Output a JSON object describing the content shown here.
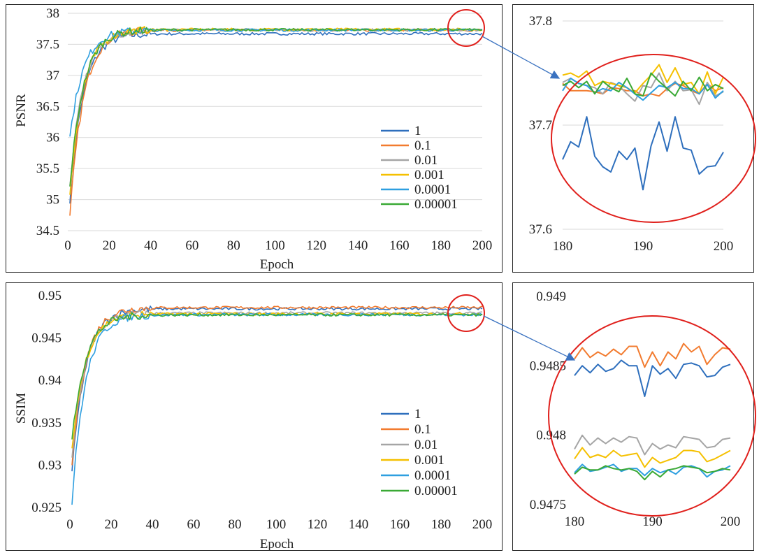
{
  "colors": {
    "1": "#2e6fbd",
    "0.1": "#f27b2f",
    "0.01": "#a5a5a5",
    "0.001": "#f5c000",
    "0.0001": "#2e9fe0",
    "0.00001": "#3aa935",
    "highlight": "#e0201c",
    "arrow": "#3a72c0"
  },
  "chart_data": [
    {
      "id": "psnr-main",
      "type": "line",
      "xlabel": "Epoch",
      "ylabel": "PSNR",
      "xlim": [
        0,
        200
      ],
      "ylim": [
        34.5,
        38
      ],
      "xticks": [
        "0",
        "20",
        "40",
        "60",
        "80",
        "100",
        "120",
        "140",
        "160",
        "180",
        "200"
      ],
      "yticks": [
        "34.5",
        "35",
        "35.5",
        "36",
        "36.5",
        "37",
        "37.5",
        "38"
      ],
      "legend_position": "center-right",
      "legend": [
        "1",
        "0.1",
        "0.01",
        "0.001",
        "0.0001",
        "0.00001"
      ],
      "series_plateau": [
        37.67,
        37.73,
        37.73,
        37.74,
        37.73,
        37.735
      ],
      "series_start": [
        35.0,
        34.7,
        35.2,
        35.1,
        36.0,
        35.2
      ]
    },
    {
      "id": "psnr-zoom",
      "type": "line",
      "xlim": [
        180,
        200
      ],
      "ylim": [
        37.6,
        37.8
      ],
      "xticks": [
        "180",
        "190",
        "200"
      ],
      "yticks": [
        "37.6",
        "37.7",
        "37.8"
      ],
      "x": [
        180,
        181,
        182,
        183,
        184,
        185,
        186,
        187,
        188,
        189,
        190,
        191,
        192,
        193,
        194,
        195,
        196,
        197,
        198,
        199,
        200
      ],
      "series": [
        {
          "name": "1",
          "values": [
            37.667,
            37.684,
            37.679,
            37.708,
            37.67,
            37.66,
            37.655,
            37.675,
            37.667,
            37.678,
            37.638,
            37.68,
            37.703,
            37.675,
            37.708,
            37.678,
            37.676,
            37.653,
            37.66,
            37.661,
            37.674
          ]
        },
        {
          "name": "0.1",
          "values": [
            37.74,
            37.733,
            37.733,
            37.733,
            37.732,
            37.73,
            37.736,
            37.735,
            37.733,
            37.733,
            37.728,
            37.73,
            37.728,
            37.735,
            37.74,
            37.738,
            37.733,
            37.73,
            37.74,
            37.733,
            37.736
          ]
        },
        {
          "name": "0.01",
          "values": [
            37.741,
            37.745,
            37.74,
            37.738,
            37.736,
            37.73,
            37.741,
            37.738,
            37.73,
            37.723,
            37.738,
            37.736,
            37.75,
            37.733,
            37.742,
            37.733,
            37.734,
            37.72,
            37.741,
            37.728,
            37.732
          ]
        },
        {
          "name": "0.001",
          "values": [
            37.748,
            37.75,
            37.746,
            37.752,
            37.738,
            37.742,
            37.74,
            37.738,
            37.736,
            37.731,
            37.74,
            37.748,
            37.758,
            37.741,
            37.755,
            37.739,
            37.741,
            37.73,
            37.751,
            37.73,
            37.746
          ]
        },
        {
          "name": "0.0001",
          "values": [
            37.733,
            37.745,
            37.74,
            37.738,
            37.731,
            37.735,
            37.733,
            37.741,
            37.736,
            37.73,
            37.724,
            37.731,
            37.738,
            37.736,
            37.741,
            37.735,
            37.735,
            37.73,
            37.739,
            37.726,
            37.733
          ]
        },
        {
          "name": "0.00001",
          "values": [
            37.738,
            37.742,
            37.736,
            37.742,
            37.73,
            37.742,
            37.736,
            37.732,
            37.745,
            37.73,
            37.728,
            37.75,
            37.742,
            37.735,
            37.728,
            37.742,
            37.733,
            37.746,
            37.733,
            37.739,
            37.735
          ]
        }
      ]
    },
    {
      "id": "ssim-main",
      "type": "line",
      "xlabel": "Epoch",
      "ylabel": "SSIM",
      "xlim": [
        0,
        200
      ],
      "ylim": [
        0.925,
        0.95
      ],
      "xticks": [
        "0",
        "20",
        "40",
        "60",
        "80",
        "100",
        "120",
        "140",
        "160",
        "180",
        "200"
      ],
      "yticks": [
        "0.925",
        "0.93",
        "0.935",
        "0.94",
        "0.945",
        "0.95"
      ],
      "legend_position": "bottom-right",
      "legend": [
        "1",
        "0.1",
        "0.01",
        "0.001",
        "0.0001",
        "0.00001"
      ],
      "series_plateau": [
        0.94845,
        0.9486,
        0.94795,
        0.94785,
        0.94775,
        0.94773
      ],
      "series_start": [
        0.929,
        0.93,
        0.931,
        0.932,
        0.9255,
        0.933
      ]
    },
    {
      "id": "ssim-zoom",
      "type": "line",
      "xlim": [
        180,
        200
      ],
      "ylim": [
        0.9475,
        0.949
      ],
      "xticks": [
        "180",
        "190",
        "200"
      ],
      "yticks": [
        "0.9475",
        "0.948",
        "0.9485",
        "0.949"
      ],
      "x": [
        180,
        181,
        182,
        183,
        184,
        185,
        186,
        187,
        188,
        189,
        190,
        191,
        192,
        193,
        194,
        195,
        196,
        197,
        198,
        199,
        200
      ],
      "series": [
        {
          "name": "1",
          "values": [
            0.94843,
            0.9485,
            0.94845,
            0.94851,
            0.94846,
            0.94848,
            0.94854,
            0.9485,
            0.9485,
            0.94828,
            0.9485,
            0.94844,
            0.94848,
            0.94841,
            0.94851,
            0.94852,
            0.9485,
            0.94842,
            0.94843,
            0.94849,
            0.94851
          ]
        },
        {
          "name": "0.1",
          "values": [
            0.94855,
            0.94863,
            0.94856,
            0.9486,
            0.94857,
            0.94862,
            0.94858,
            0.94864,
            0.94864,
            0.94849,
            0.9486,
            0.9485,
            0.9486,
            0.94855,
            0.94866,
            0.9486,
            0.94864,
            0.94851,
            0.94858,
            0.94863,
            0.94862
          ]
        },
        {
          "name": "0.01",
          "values": [
            0.9479,
            0.948,
            0.94793,
            0.94798,
            0.94794,
            0.94798,
            0.94795,
            0.94799,
            0.94798,
            0.94786,
            0.94794,
            0.9479,
            0.94793,
            0.94791,
            0.94799,
            0.94798,
            0.94797,
            0.94791,
            0.94792,
            0.94797,
            0.94798
          ]
        },
        {
          "name": "0.001",
          "values": [
            0.94783,
            0.94791,
            0.94784,
            0.94786,
            0.94784,
            0.94789,
            0.94785,
            0.94786,
            0.94787,
            0.94777,
            0.94784,
            0.9478,
            0.94782,
            0.94784,
            0.94789,
            0.94789,
            0.94788,
            0.94781,
            0.94783,
            0.94786,
            0.94789
          ]
        },
        {
          "name": "0.0001",
          "values": [
            0.94773,
            0.94779,
            0.94774,
            0.94775,
            0.94777,
            0.94779,
            0.94774,
            0.94776,
            0.94776,
            0.94771,
            0.94776,
            0.94773,
            0.94775,
            0.94772,
            0.94777,
            0.94778,
            0.94776,
            0.9477,
            0.94774,
            0.94775,
            0.94778
          ]
        },
        {
          "name": "0.00001",
          "values": [
            0.94772,
            0.94777,
            0.94775,
            0.94775,
            0.94778,
            0.94776,
            0.94775,
            0.94776,
            0.94774,
            0.94768,
            0.94774,
            0.9477,
            0.94775,
            0.94776,
            0.94778,
            0.94777,
            0.94776,
            0.94773,
            0.94774,
            0.94776,
            0.94775
          ]
        }
      ]
    }
  ]
}
